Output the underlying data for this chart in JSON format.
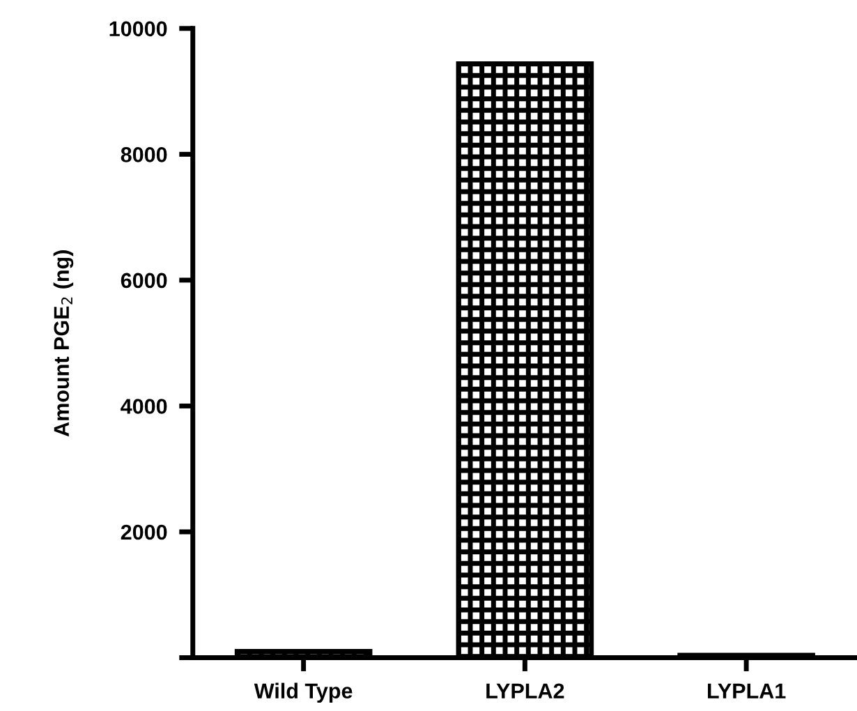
{
  "chart_data": {
    "type": "bar",
    "ylabel": "Amount PGE$_{2}$ (ng)",
    "categories": [
      "Wild Type",
      "LYPLA2",
      "LYPLA1"
    ],
    "values": [
      100,
      9440,
      40
    ],
    "color": "#000000",
    "ylim": [
      0,
      10000
    ],
    "yticks": [
      {
        "value": 0,
        "label": null
      },
      2000,
      4000,
      6000,
      8000,
      10000
    ],
    "grid": false,
    "legend": false
  }
}
